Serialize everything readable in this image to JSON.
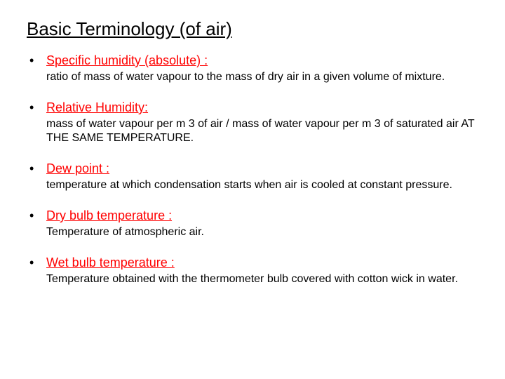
{
  "slide": {
    "title": "Basic Terminology (of air)",
    "title_color": "#000000",
    "title_fontsize": 26,
    "background_color": "#ffffff",
    "bullet_char": "•",
    "term_color": "#ff0000",
    "term_fontsize": 18,
    "definition_color": "#000000",
    "definition_fontsize": 16,
    "items": [
      {
        "term": "Specific humidity (absolute) :",
        "definition": "ratio of mass of water vapour to the mass of dry air in a given volume of mixture."
      },
      {
        "term": "Relative Humidity:",
        "definition": "mass of water vapour per m 3 of air / mass of water vapour per m 3 of saturated air AT THE SAME TEMPERATURE."
      },
      {
        "term": "Dew point :",
        "definition": "temperature at which condensation starts when air is cooled at constant pressure."
      },
      {
        "term": "Dry bulb temperature :",
        "definition": "Temperature of atmospheric air."
      },
      {
        "term": "Wet bulb temperature :",
        "definition": "Temperature obtained with the thermometer bulb covered with cotton wick in water."
      }
    ]
  }
}
